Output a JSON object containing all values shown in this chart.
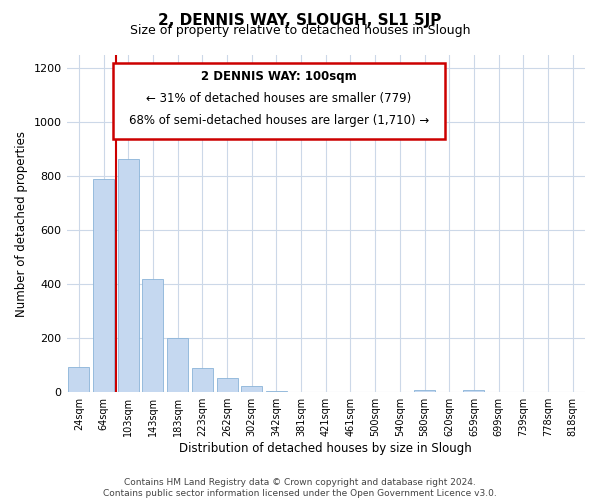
{
  "title": "2, DENNIS WAY, SLOUGH, SL1 5JP",
  "subtitle": "Size of property relative to detached houses in Slough",
  "xlabel": "Distribution of detached houses by size in Slough",
  "ylabel": "Number of detached properties",
  "bar_labels": [
    "24sqm",
    "64sqm",
    "103sqm",
    "143sqm",
    "183sqm",
    "223sqm",
    "262sqm",
    "302sqm",
    "342sqm",
    "381sqm",
    "421sqm",
    "461sqm",
    "500sqm",
    "540sqm",
    "580sqm",
    "620sqm",
    "659sqm",
    "699sqm",
    "739sqm",
    "778sqm",
    "818sqm"
  ],
  "bar_values": [
    95,
    790,
    865,
    420,
    200,
    88,
    52,
    22,
    5,
    2,
    1,
    0,
    0,
    0,
    10,
    0,
    10,
    0,
    0,
    0,
    0
  ],
  "bar_color": "#c5d8f0",
  "bar_edge_color": "#8ab4d8",
  "red_line_x": 1.5,
  "ylim": [
    0,
    1250
  ],
  "yticks": [
    0,
    200,
    400,
    600,
    800,
    1000,
    1200
  ],
  "annotation_title": "2 DENNIS WAY: 100sqm",
  "annotation_line1": "← 31% of detached houses are smaller (779)",
  "annotation_line2": "68% of semi-detached houses are larger (1,710) →",
  "annotation_box_color": "#ffffff",
  "annotation_box_edgecolor": "#cc0000",
  "footer_line1": "Contains HM Land Registry data © Crown copyright and database right 2024.",
  "footer_line2": "Contains public sector information licensed under the Open Government Licence v3.0.",
  "background_color": "#ffffff",
  "grid_color": "#ccd8e8"
}
